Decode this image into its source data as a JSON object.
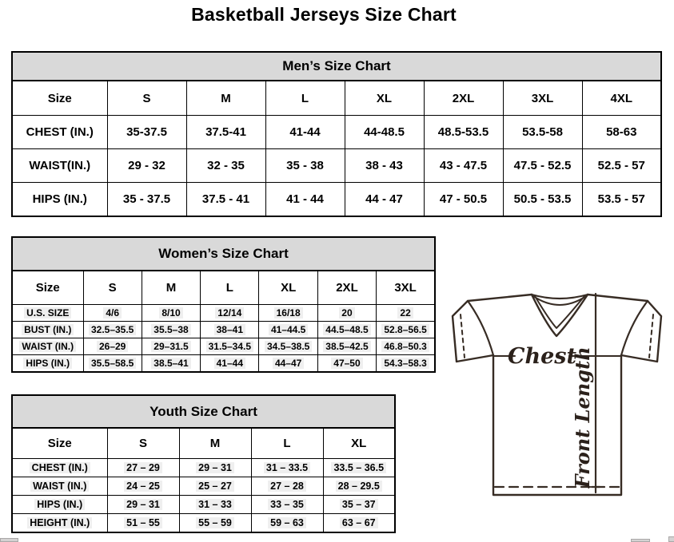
{
  "page_title": "Basketball Jerseys Size Chart",
  "colors": {
    "table_header_bg": "#d9d9d9",
    "table_border": "#000000",
    "diagram_stroke": "#372c24",
    "highlight": "#efefef",
    "page_bg": "#ffffff"
  },
  "tables": {
    "men": {
      "title": "Men’s Size Chart",
      "columns": [
        "Size",
        "S",
        "M",
        "L",
        "XL",
        "2XL",
        "3XL",
        "4XL"
      ],
      "rows": [
        {
          "label": "CHEST (IN.)",
          "values": [
            "35-37.5",
            "37.5-41",
            "41-44",
            "44-48.5",
            "48.5-53.5",
            "53.5-58",
            "58-63"
          ]
        },
        {
          "label": "WAIST(IN.)",
          "values": [
            "29 - 32",
            "32 - 35",
            "35 - 38",
            "38 - 43",
            "43 - 47.5",
            "47.5 - 52.5",
            "52.5 - 57"
          ]
        },
        {
          "label": "HIPS (IN.)",
          "values": [
            "35 - 37.5",
            "37.5 - 41",
            "41 - 44",
            "44 - 47",
            "47 - 50.5",
            "50.5 - 53.5",
            "53.5 - 57"
          ]
        }
      ]
    },
    "women": {
      "title": "Women’s Size Chart",
      "columns": [
        "Size",
        "S",
        "M",
        "L",
        "XL",
        "2XL",
        "3XL"
      ],
      "rows": [
        {
          "label": "U.S. SIZE",
          "values": [
            "4/6",
            "8/10",
            "12/14",
            "16/18",
            "20",
            "22"
          ]
        },
        {
          "label": "BUST (IN.)",
          "values": [
            "32.5–35.5",
            "35.5–38",
            "38–41",
            "41–44.5",
            "44.5–48.5",
            "52.8–56.5"
          ]
        },
        {
          "label": "WAIST (IN.)",
          "values": [
            "26–29",
            "29–31.5",
            "31.5–34.5",
            "34.5–38.5",
            "38.5–42.5",
            "46.8–50.3"
          ]
        },
        {
          "label": "HIPS (IN.)",
          "values": [
            "35.5–58.5",
            "38.5–41",
            "41–44",
            "44–47",
            "47–50",
            "54.3–58.3"
          ]
        }
      ]
    },
    "youth": {
      "title": "Youth Size Chart",
      "columns": [
        "Size",
        "S",
        "M",
        "L",
        "XL"
      ],
      "rows": [
        {
          "label": "CHEST (IN.)",
          "values": [
            "27 – 29",
            "29 – 31",
            "31 – 33.5",
            "33.5 – 36.5"
          ]
        },
        {
          "label": "WAIST (IN.)",
          "values": [
            "24 – 25",
            "25 – 27",
            "27 – 28",
            "28 – 29.5"
          ]
        },
        {
          "label": "HIPS (IN.)",
          "values": [
            "29 – 31",
            "31 – 33",
            "33 – 35",
            "35 – 37"
          ]
        },
        {
          "label": "HEIGHT (IN.)",
          "values": [
            "51 – 55",
            "55 – 59",
            "59 – 63",
            "63 – 67"
          ]
        }
      ]
    }
  },
  "diagram": {
    "chest_label": "Chest",
    "front_length_label": "Front Length"
  }
}
